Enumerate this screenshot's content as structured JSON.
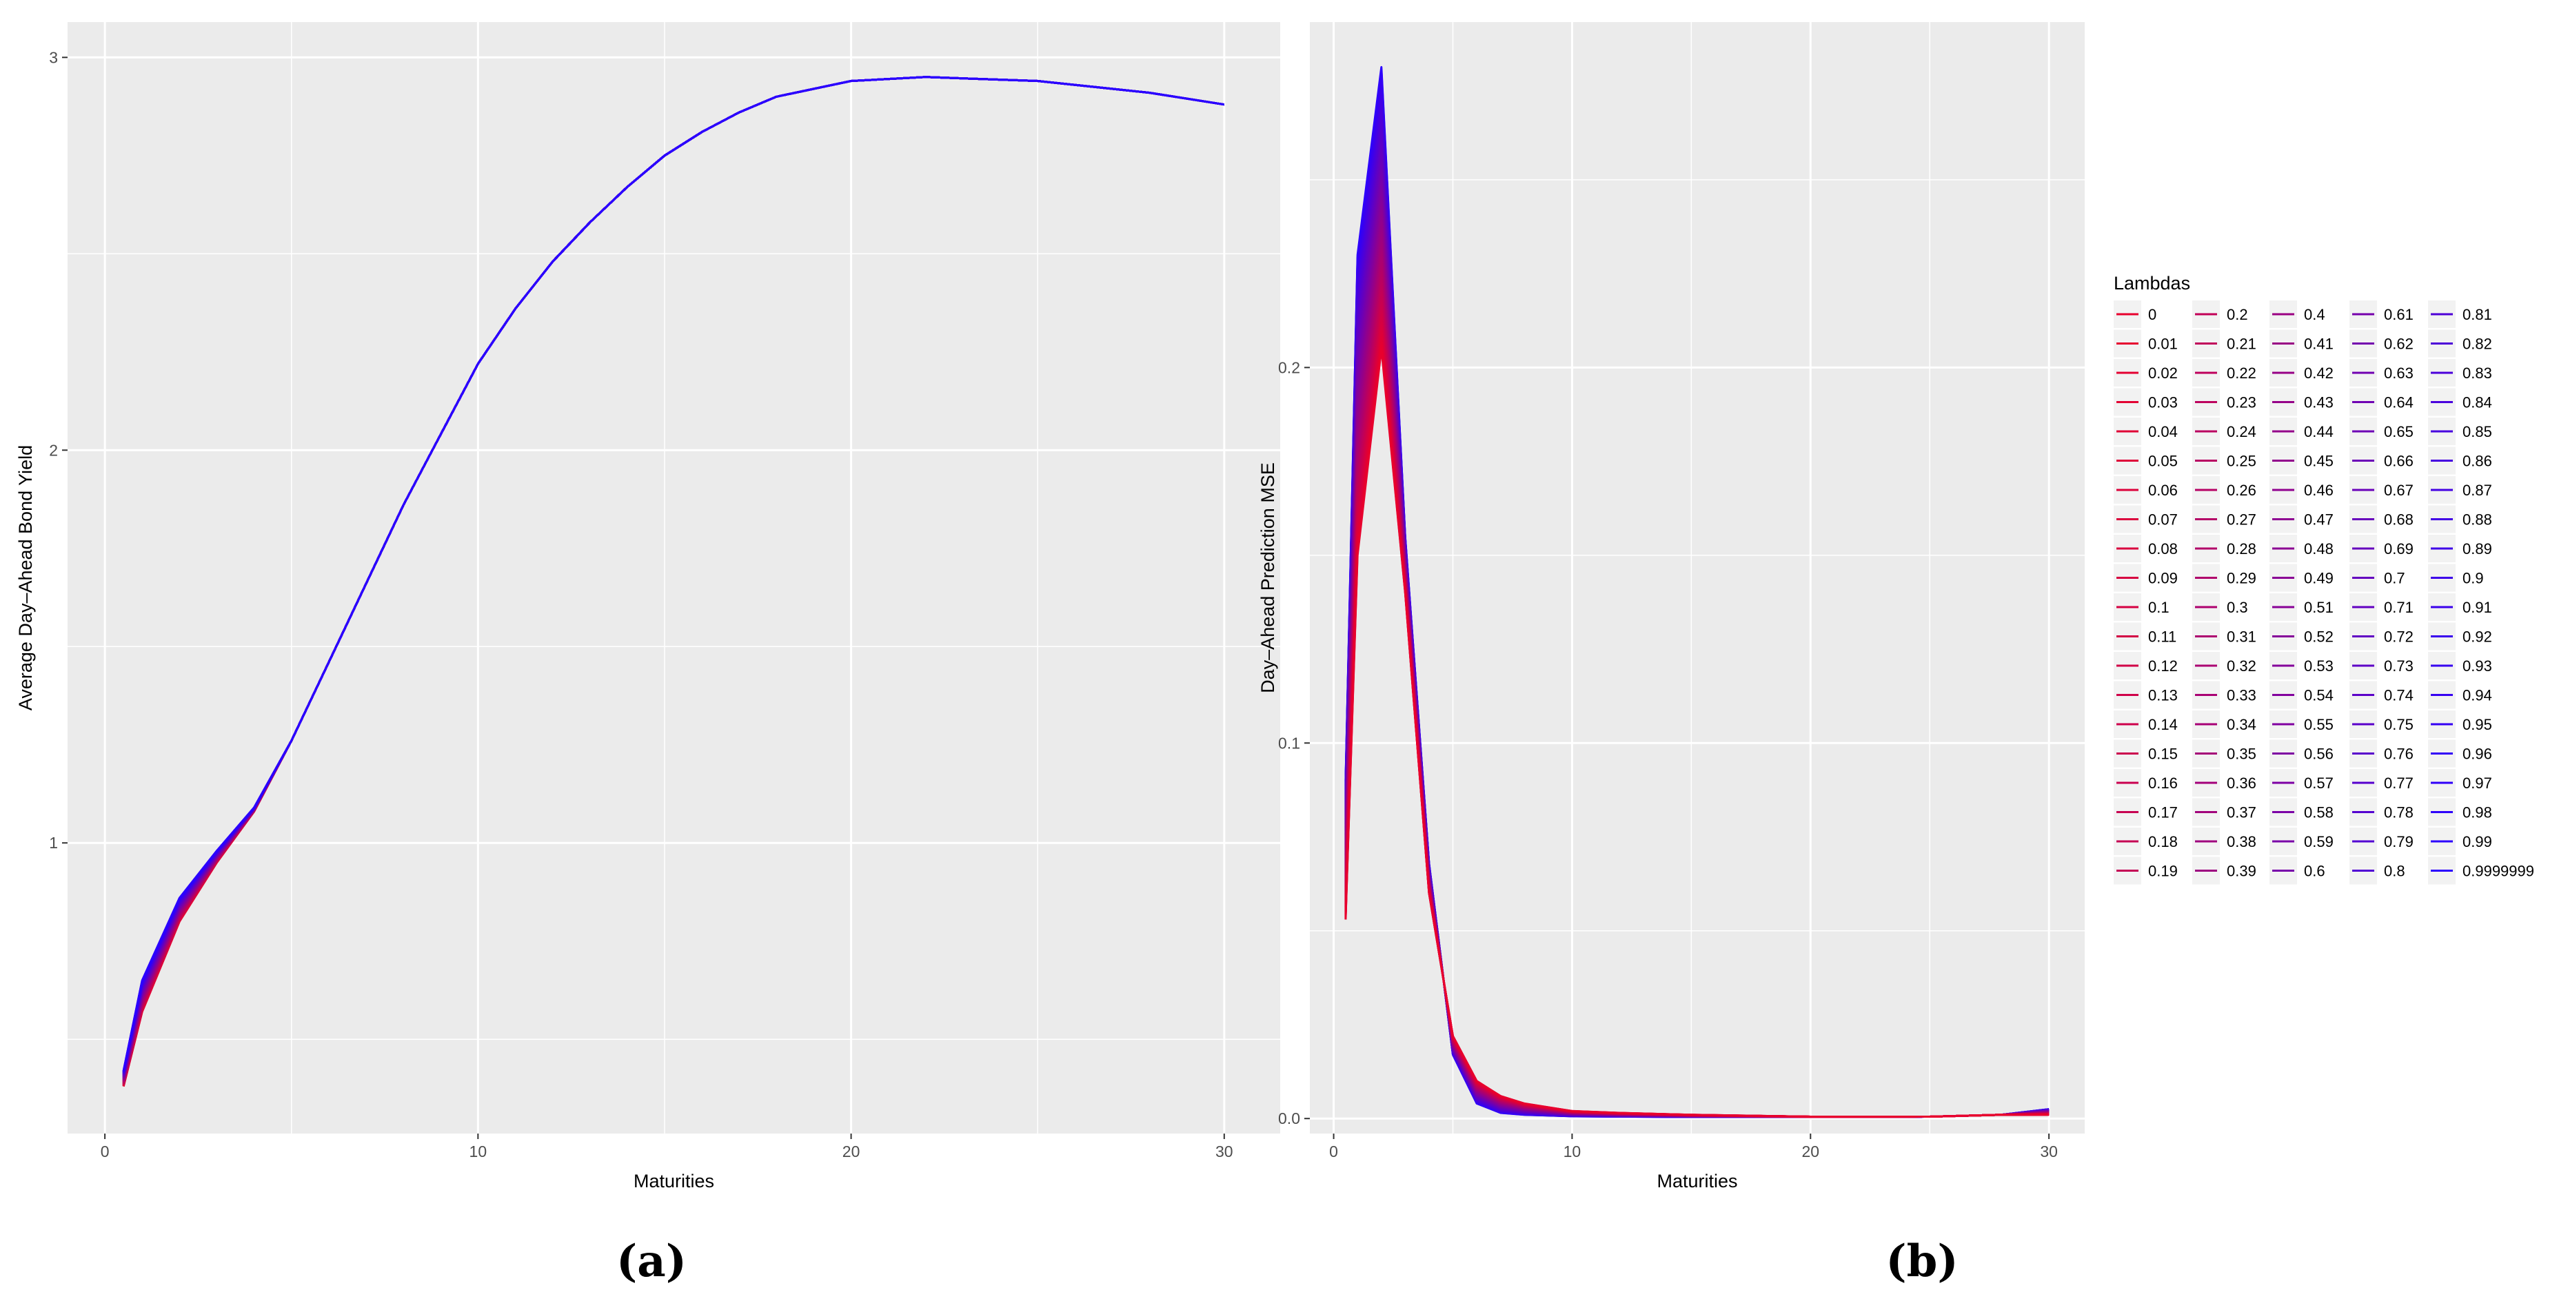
{
  "chart_data": [
    {
      "type": "line",
      "panel_label": "(a)",
      "xlabel": "Maturities",
      "ylabel": "Average Day–Ahead Bond Yield",
      "xlim": [
        -1,
        31.5
      ],
      "ylim": [
        0.26,
        3.09
      ],
      "x_ticks": [
        0,
        10,
        20,
        30
      ],
      "y_ticks": [
        1,
        2,
        3
      ],
      "grid": true,
      "legend": "none",
      "x": [
        0.5,
        1,
        2,
        3,
        4,
        5,
        6,
        7,
        8,
        9,
        10,
        11,
        12,
        13,
        14,
        15,
        16,
        17,
        18,
        20,
        22,
        25,
        28,
        30
      ],
      "band_low": [
        0.38,
        0.57,
        0.8,
        0.95,
        1.08,
        1.26,
        1.46,
        1.66,
        1.86,
        2.04,
        2.22,
        2.36,
        2.48,
        2.58,
        2.67,
        2.75,
        2.81,
        2.86,
        2.9,
        2.94,
        2.95,
        2.94,
        2.91,
        2.88
      ],
      "band_high": [
        0.42,
        0.65,
        0.86,
        0.98,
        1.09,
        1.26,
        1.46,
        1.66,
        1.86,
        2.04,
        2.22,
        2.36,
        2.48,
        2.58,
        2.67,
        2.75,
        2.81,
        2.86,
        2.9,
        2.94,
        2.95,
        2.94,
        2.91,
        2.88
      ],
      "color_low_lambda": "#e8002d",
      "color_high_lambda": "#2a00ff"
    },
    {
      "type": "line",
      "panel_label": "(b)",
      "xlabel": "Maturities",
      "ylabel": "Day–Ahead Prediction MSE",
      "xlim": [
        -1,
        31.5
      ],
      "ylim": [
        -0.004,
        0.292
      ],
      "x_ticks": [
        0,
        10,
        20,
        30
      ],
      "y_ticks": [
        "0.0",
        "0.1",
        "0.2"
      ],
      "y_tick_values": [
        0,
        0.1,
        0.2
      ],
      "grid": true,
      "legend": "right",
      "x": [
        0.5,
        1,
        2,
        3,
        4,
        5,
        6,
        7,
        8,
        9,
        10,
        12,
        15,
        20,
        25,
        28,
        30
      ],
      "red_series_lambda_0": [
        0.053,
        0.15,
        0.205,
        0.14,
        0.06,
        0.022,
        0.01,
        0.006,
        0.004,
        0.003,
        0.002,
        0.0015,
        0.001,
        0.0005,
        0.0005,
        0.001,
        0.001
      ],
      "blue_series_lambda_09999999": [
        0.09,
        0.23,
        0.28,
        0.155,
        0.068,
        0.017,
        0.004,
        0.0015,
        0.001,
        0.0008,
        0.0006,
        0.0005,
        0.0004,
        0.0004,
        0.0005,
        0.001,
        0.0025
      ],
      "legend_title": "Lambdas",
      "legend_columns": [
        [
          "0",
          "0.01",
          "0.02",
          "0.03",
          "0.04",
          "0.05",
          "0.06",
          "0.07",
          "0.08",
          "0.09",
          "0.1",
          "0.11",
          "0.12",
          "0.13",
          "0.14",
          "0.15",
          "0.16",
          "0.17",
          "0.18",
          "0.19"
        ],
        [
          "0.2",
          "0.21",
          "0.22",
          "0.23",
          "0.24",
          "0.25",
          "0.26",
          "0.27",
          "0.28",
          "0.29",
          "0.3",
          "0.31",
          "0.32",
          "0.33",
          "0.34",
          "0.35",
          "0.36",
          "0.37",
          "0.38",
          "0.39"
        ],
        [
          "0.4",
          "0.41",
          "0.42",
          "0.43",
          "0.44",
          "0.45",
          "0.46",
          "0.47",
          "0.48",
          "0.49",
          "0.51",
          "0.52",
          "0.53",
          "0.54",
          "0.55",
          "0.56",
          "0.57",
          "0.58",
          "0.59",
          "0.6"
        ],
        [
          "0.61",
          "0.62",
          "0.63",
          "0.64",
          "0.65",
          "0.66",
          "0.67",
          "0.68",
          "0.69",
          "0.7",
          "0.71",
          "0.72",
          "0.73",
          "0.74",
          "0.75",
          "0.76",
          "0.77",
          "0.78",
          "0.79",
          "0.8"
        ],
        [
          "0.81",
          "0.82",
          "0.83",
          "0.84",
          "0.85",
          "0.86",
          "0.87",
          "0.88",
          "0.89",
          "0.9",
          "0.91",
          "0.92",
          "0.93",
          "0.94",
          "0.95",
          "0.96",
          "0.97",
          "0.98",
          "0.99",
          "0.9999999"
        ]
      ]
    }
  ]
}
